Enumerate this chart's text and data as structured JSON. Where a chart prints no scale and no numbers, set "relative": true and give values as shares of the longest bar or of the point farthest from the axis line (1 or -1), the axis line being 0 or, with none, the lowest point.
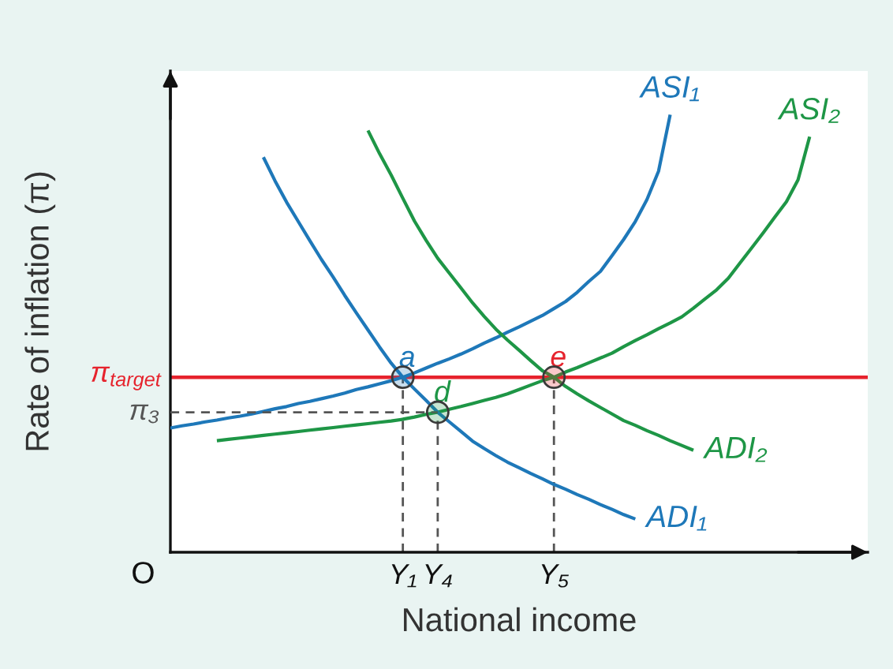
{
  "chart_data": {
    "type": "line",
    "relative": true,
    "xlabel": "National income",
    "ylabel": "Rate of inflation (π)",
    "categories": [
      null,
      null,
      null,
      null,
      null,
      null,
      null,
      null,
      null,
      null,
      null,
      null,
      null,
      null,
      null,
      null,
      null,
      null,
      null,
      null,
      "Y₁",
      null,
      null,
      "Y₄",
      null,
      null,
      null,
      null,
      null,
      null,
      null,
      null,
      null,
      "Y₅",
      null,
      null,
      null,
      null,
      null,
      null,
      null,
      null,
      null,
      null,
      null,
      null,
      null,
      null,
      null,
      null,
      null,
      null,
      null,
      null,
      null,
      null,
      null,
      null,
      null,
      null
    ],
    "ref_lines": [
      {
        "axis": "y",
        "value": 0.4,
        "label": "π$_{target}$",
        "color": "#e6232d"
      }
    ],
    "series": [
      {
        "name": "ASI₁",
        "color": "#1e78b9",
        "values": [
          0.284,
          0.289,
          0.293,
          0.298,
          0.302,
          0.307,
          0.311,
          0.316,
          0.322,
          0.328,
          0.333,
          0.34,
          0.345,
          0.351,
          0.357,
          0.364,
          0.372,
          0.378,
          0.385,
          0.392,
          0.4,
          0.41,
          0.421,
          0.432,
          0.442,
          0.453,
          0.465,
          0.478,
          0.49,
          0.503,
          0.515,
          0.528,
          0.541,
          0.557,
          0.573,
          0.594,
          0.619,
          0.642,
          0.678,
          0.715,
          0.756,
          0.806,
          0.871,
          1.0,
          null,
          null,
          null,
          null,
          null,
          null,
          null,
          null,
          null,
          null,
          null,
          null,
          null,
          null,
          null,
          null
        ]
      },
      {
        "name": "ASI₂",
        "color": "#1e9646",
        "values": [
          null,
          null,
          null,
          null,
          0.255,
          0.258,
          0.261,
          0.264,
          0.267,
          0.27,
          0.273,
          0.276,
          0.279,
          0.282,
          0.285,
          0.288,
          0.291,
          0.294,
          0.297,
          0.3,
          0.304,
          0.309,
          0.315,
          0.32,
          0.327,
          0.333,
          0.34,
          0.347,
          0.354,
          0.362,
          0.372,
          0.382,
          0.392,
          0.4,
          0.412,
          0.422,
          0.433,
          0.444,
          0.455,
          0.47,
          0.484,
          0.497,
          0.511,
          0.524,
          0.538,
          0.558,
          0.579,
          0.6,
          0.626,
          0.661,
          0.695,
          0.73,
          0.766,
          0.801,
          0.851,
          0.95,
          null,
          null,
          null,
          null
        ]
      },
      {
        "name": "ADI₁",
        "color": "#1e78b9",
        "values": [
          null,
          null,
          null,
          null,
          null,
          null,
          null,
          null,
          0.903,
          0.849,
          0.8,
          0.756,
          0.712,
          0.669,
          0.629,
          0.587,
          0.547,
          0.508,
          0.469,
          0.432,
          0.4,
          0.373,
          0.347,
          0.32,
          0.298,
          0.276,
          0.254,
          0.237,
          0.221,
          0.206,
          0.193,
          0.18,
          0.168,
          0.155,
          0.144,
          0.132,
          0.121,
          0.109,
          0.098,
          0.086,
          0.076,
          null,
          null,
          null,
          null,
          null,
          null,
          null,
          null,
          null,
          null,
          null,
          null,
          null,
          null,
          null,
          null,
          null,
          null,
          null
        ]
      },
      {
        "name": "ADI₂",
        "color": "#1e9646",
        "values": [
          null,
          null,
          null,
          null,
          null,
          null,
          null,
          null,
          null,
          null,
          null,
          null,
          null,
          null,
          null,
          null,
          null,
          0.964,
          0.911,
          0.862,
          0.809,
          0.757,
          0.713,
          0.672,
          0.638,
          0.604,
          0.57,
          0.539,
          0.51,
          0.485,
          0.462,
          0.438,
          0.415,
          0.4,
          0.379,
          0.362,
          0.346,
          0.331,
          0.316,
          0.301,
          0.29,
          0.278,
          0.267,
          0.255,
          0.244,
          0.233,
          null,
          null,
          null,
          null,
          null,
          null,
          null,
          null,
          null,
          null,
          null,
          null,
          null,
          null
        ]
      },
      {
        "name": "π₃",
        "color": "#555555",
        "line_style": "dashed",
        "values": [
          0.32,
          0.32,
          0.32,
          0.32,
          0.32,
          0.32,
          0.32,
          0.32,
          0.32,
          0.32,
          0.32,
          0.32,
          0.32,
          0.32,
          0.32,
          0.32,
          0.32,
          0.32,
          0.32,
          0.32,
          0.32,
          0.32,
          0.32,
          0.32,
          null,
          null,
          null,
          null,
          null,
          null,
          null,
          null,
          null,
          null,
          null,
          null,
          null,
          null,
          null,
          null,
          null,
          null,
          null,
          null,
          null,
          null,
          null,
          null,
          null,
          null,
          null,
          null,
          null,
          null,
          null,
          null,
          null,
          null,
          null,
          null
        ]
      },
      {
        "type": "lollipop",
        "name": "a",
        "color": "#1e78b9",
        "line_style": "dashed",
        "values": [
          null,
          null,
          null,
          null,
          null,
          null,
          null,
          null,
          null,
          null,
          null,
          null,
          null,
          null,
          null,
          null,
          null,
          null,
          null,
          null,
          0.4,
          null,
          null,
          null,
          null,
          null,
          null,
          null,
          null,
          null,
          null,
          null,
          null,
          null,
          null,
          null,
          null,
          null,
          null,
          null,
          null,
          null,
          null,
          null,
          null,
          null,
          null,
          null,
          null,
          null,
          null,
          null,
          null,
          null,
          null,
          null,
          null,
          null,
          null,
          null
        ]
      },
      {
        "type": "lollipop",
        "name": "d",
        "color": "#1e9646",
        "line_style": "dashed",
        "values": [
          null,
          null,
          null,
          null,
          null,
          null,
          null,
          null,
          null,
          null,
          null,
          null,
          null,
          null,
          null,
          null,
          null,
          null,
          null,
          null,
          null,
          null,
          null,
          0.32,
          null,
          null,
          null,
          null,
          null,
          null,
          null,
          null,
          null,
          null,
          null,
          null,
          null,
          null,
          null,
          null,
          null,
          null,
          null,
          null,
          null,
          null,
          null,
          null,
          null,
          null,
          null,
          null,
          null,
          null,
          null,
          null,
          null,
          null,
          null,
          null
        ]
      },
      {
        "type": "lollipop",
        "name": "e",
        "color": "#e6232d",
        "line_style": "dashed",
        "values": [
          null,
          null,
          null,
          null,
          null,
          null,
          null,
          null,
          null,
          null,
          null,
          null,
          null,
          null,
          null,
          null,
          null,
          null,
          null,
          null,
          null,
          null,
          null,
          null,
          null,
          null,
          null,
          null,
          null,
          null,
          null,
          null,
          null,
          0.4,
          null,
          null,
          null,
          null,
          null,
          null,
          null,
          null,
          null,
          null,
          null,
          null,
          null,
          null,
          null,
          null,
          null,
          null,
          null,
          null,
          null,
          null,
          null,
          null,
          null,
          null
        ]
      }
    ],
    "annotations": [
      "O"
    ]
  }
}
